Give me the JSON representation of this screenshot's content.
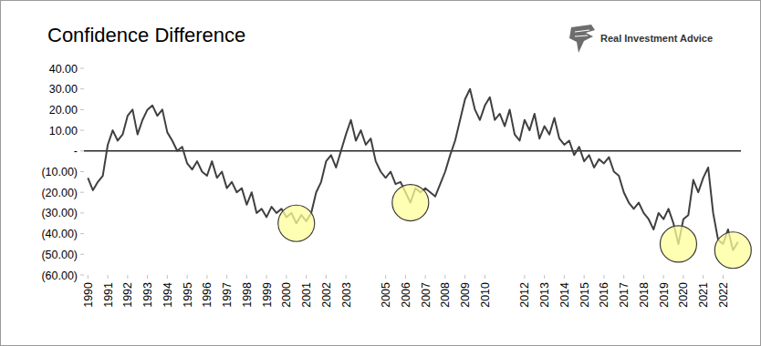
{
  "chart_data": {
    "type": "line",
    "title": "Confidence Difference",
    "annotations": [
      "Real Investment Advice"
    ],
    "x": [
      1990,
      1990.25,
      1990.5,
      1990.75,
      1991,
      1991.25,
      1991.5,
      1991.75,
      1992,
      1992.25,
      1992.5,
      1992.75,
      1993,
      1993.25,
      1993.5,
      1993.75,
      1994,
      1994.25,
      1994.5,
      1994.75,
      1995,
      1995.25,
      1995.5,
      1995.75,
      1996,
      1996.25,
      1996.5,
      1996.75,
      1997,
      1997.25,
      1997.5,
      1997.75,
      1998,
      1998.25,
      1998.5,
      1998.75,
      1999,
      1999.25,
      1999.5,
      1999.75,
      2000,
      2000.25,
      2000.5,
      2000.75,
      2001,
      2001.25,
      2001.5,
      2001.75,
      2002,
      2002.25,
      2002.5,
      2002.75,
      2003,
      2003.25,
      2003.5,
      2003.75,
      2004,
      2004.25,
      2004.5,
      2004.75,
      2005,
      2005.25,
      2005.5,
      2005.75,
      2006,
      2006.25,
      2006.5,
      2006.75,
      2007,
      2007.25,
      2007.5,
      2007.75,
      2008,
      2008.25,
      2008.5,
      2008.75,
      2009,
      2009.25,
      2009.5,
      2009.75,
      2010,
      2010.25,
      2010.5,
      2010.75,
      2011,
      2011.25,
      2011.5,
      2011.75,
      2012,
      2012.25,
      2012.5,
      2012.75,
      2013,
      2013.25,
      2013.5,
      2013.75,
      2014,
      2014.25,
      2014.5,
      2014.75,
      2015,
      2015.25,
      2015.5,
      2015.75,
      2016,
      2016.25,
      2016.5,
      2016.75,
      2017,
      2017.25,
      2017.5,
      2017.75,
      2018,
      2018.25,
      2018.5,
      2018.75,
      2019,
      2019.25,
      2019.5,
      2019.75,
      2020,
      2020.25,
      2020.5,
      2020.75,
      2021,
      2021.25,
      2021.5,
      2021.75,
      2022,
      2022.25,
      2022.5,
      2022.75
    ],
    "series": [
      {
        "color": "#404040",
        "values": [
          -13,
          -19,
          -15,
          -12,
          3,
          10,
          5,
          8,
          17,
          20,
          8,
          15,
          20,
          22,
          17,
          20,
          9,
          5,
          0,
          2,
          -6,
          -9,
          -5,
          -10,
          -12,
          -5,
          -13,
          -10,
          -18,
          -15,
          -20,
          -18,
          -26,
          -20,
          -30,
          -28,
          -32,
          -27,
          -30,
          -28,
          -32,
          -30,
          -35,
          -31,
          -34,
          -30,
          -20,
          -15,
          -5,
          -2,
          -8,
          0,
          8,
          15,
          5,
          10,
          3,
          6,
          -5,
          -10,
          -13,
          -10,
          -16,
          -15,
          -20,
          -25,
          -18,
          -20,
          -18,
          -20,
          -22,
          -16,
          -10,
          -2,
          5,
          15,
          25,
          30,
          20,
          15,
          22,
          26,
          15,
          18,
          12,
          20,
          8,
          5,
          15,
          10,
          18,
          6,
          12,
          8,
          16,
          6,
          3,
          5,
          -2,
          2,
          -5,
          -2,
          -8,
          -4,
          -6,
          -3,
          -10,
          -12,
          -20,
          -25,
          -28,
          -25,
          -30,
          -33,
          -38,
          -30,
          -33,
          -28,
          -35,
          -45,
          -33,
          -31,
          -14,
          -20,
          -13,
          -8,
          -30,
          -43,
          -45,
          -38,
          -48,
          -44
        ]
      },
      {
        "type": "scatter",
        "marker": "circle",
        "color": "#ffff99",
        "x": [
          2000.5,
          2006.25,
          2019.75,
          2022.5
        ],
        "values": [
          -35,
          -25,
          -45,
          -48
        ]
      }
    ],
    "xlim": [
      1989.8,
      2022.9
    ],
    "xticks": [
      1990,
      1991,
      1992,
      1993,
      1994,
      1995,
      1996,
      1997,
      1998,
      1999,
      2000,
      2001,
      2002,
      2003,
      2005,
      2006,
      2007,
      2008,
      2009,
      2010,
      2012,
      2013,
      2014,
      2015,
      2016,
      2017,
      2018,
      2019,
      2020,
      2021,
      2022
    ],
    "ylim": [
      -60,
      40
    ],
    "yticks": [
      {
        "value": 40,
        "label": "40.00"
      },
      {
        "value": 30,
        "label": "30.00"
      },
      {
        "value": 20,
        "label": "20.00"
      },
      {
        "value": 10,
        "label": "10.00"
      },
      {
        "value": 0,
        "label": "-"
      },
      {
        "value": -10,
        "label": "(10.00)"
      },
      {
        "value": -20,
        "label": "(20.00)"
      },
      {
        "value": -30,
        "label": "(30.00)"
      },
      {
        "value": -40,
        "label": "(40.00)"
      },
      {
        "value": -50,
        "label": "(50.00)"
      },
      {
        "value": -60,
        "label": "(60.00)"
      }
    ],
    "grid": false
  }
}
